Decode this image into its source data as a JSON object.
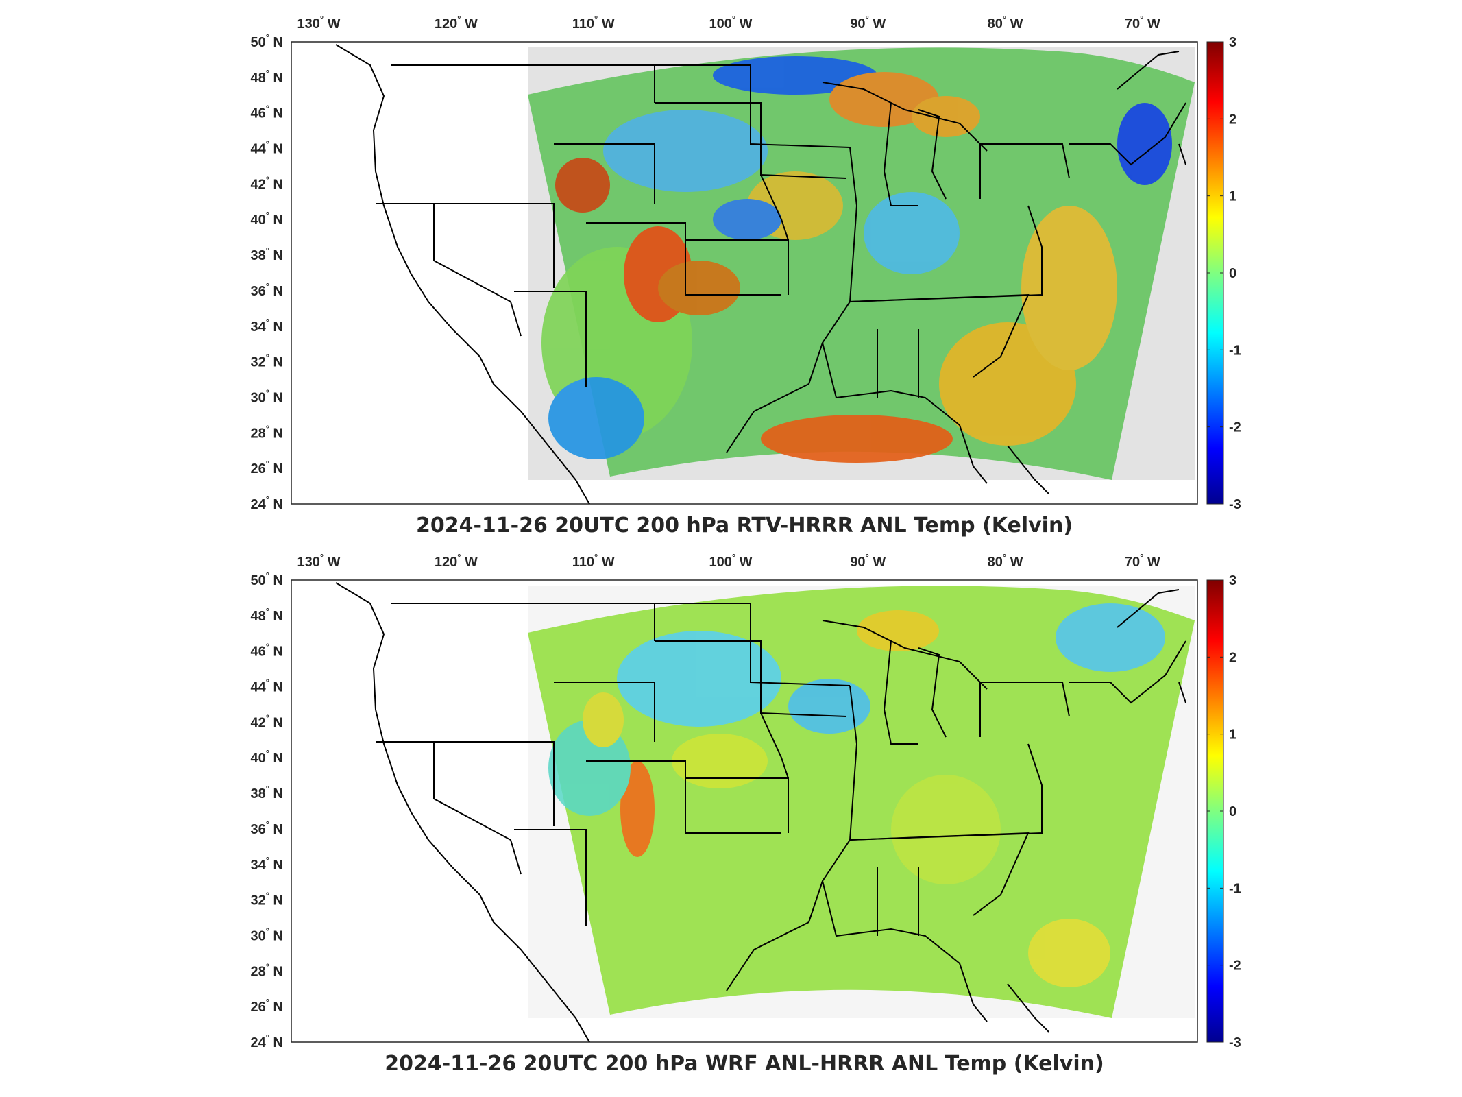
{
  "panels": [
    {
      "title": "2024-11-26 20UTC 200 hPa RTV-HRRR ANL Temp (Kelvin)",
      "field_style": "rtv"
    },
    {
      "title": "2024-11-26 20UTC 200 hPa WRF ANL-HRRR ANL Temp (Kelvin)",
      "field_style": "wrf"
    }
  ],
  "longitude_labels": [
    {
      "value": -130,
      "text": "130",
      "hemi": "W"
    },
    {
      "value": -120,
      "text": "120",
      "hemi": "W"
    },
    {
      "value": -110,
      "text": "110",
      "hemi": "W"
    },
    {
      "value": -100,
      "text": "100",
      "hemi": "W"
    },
    {
      "value": -90,
      "text": "90",
      "hemi": "W"
    },
    {
      "value": -80,
      "text": "80",
      "hemi": "W"
    },
    {
      "value": -70,
      "text": "70",
      "hemi": "W"
    }
  ],
  "latitude_labels": [
    {
      "value": 50,
      "text": "50",
      "hemi": "N"
    },
    {
      "value": 48,
      "text": "48",
      "hemi": "N"
    },
    {
      "value": 46,
      "text": "46",
      "hemi": "N"
    },
    {
      "value": 44,
      "text": "44",
      "hemi": "N"
    },
    {
      "value": 42,
      "text": "42",
      "hemi": "N"
    },
    {
      "value": 40,
      "text": "40",
      "hemi": "N"
    },
    {
      "value": 38,
      "text": "38",
      "hemi": "N"
    },
    {
      "value": 36,
      "text": "36",
      "hemi": "N"
    },
    {
      "value": 34,
      "text": "34",
      "hemi": "N"
    },
    {
      "value": 32,
      "text": "32",
      "hemi": "N"
    },
    {
      "value": 30,
      "text": "30",
      "hemi": "N"
    },
    {
      "value": 28,
      "text": "28",
      "hemi": "N"
    },
    {
      "value": 26,
      "text": "26",
      "hemi": "N"
    },
    {
      "value": 24,
      "text": "24",
      "hemi": "N"
    }
  ],
  "degree_symbol": "°",
  "colorbar": {
    "min": -3,
    "max": 3,
    "ticks": [
      "3",
      "2",
      "1",
      "0",
      "-1",
      "-2",
      "-3"
    ],
    "colormap": "jet",
    "colors": [
      "#00008f",
      "#0000ff",
      "#00ffff",
      "#ffff00",
      "#ff0000",
      "#800000"
    ]
  },
  "map_extent": {
    "lon_min": -132,
    "lon_max": -66,
    "lat_min": 24,
    "lat_max": 50
  },
  "background_color": "#ffffff",
  "boundary_color": "#000000"
}
